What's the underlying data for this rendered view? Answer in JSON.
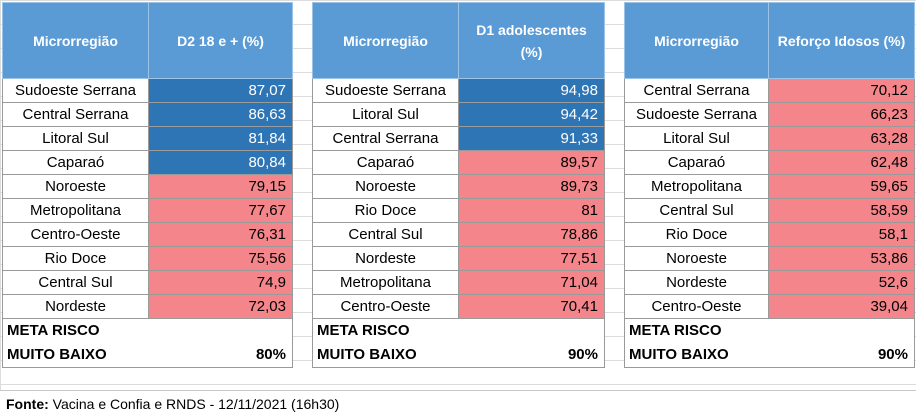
{
  "tables": [
    {
      "header_region": "Microrregião",
      "header_value": "D2 18 e + (%)",
      "rows": [
        {
          "region": "Sudoeste Serrana",
          "value": "87,07",
          "status": "blue"
        },
        {
          "region": "Central Serrana",
          "value": "86,63",
          "status": "blue"
        },
        {
          "region": "Litoral Sul",
          "value": "81,84",
          "status": "blue"
        },
        {
          "region": "Caparaó",
          "value": "80,84",
          "status": "blue"
        },
        {
          "region": "Noroeste",
          "value": "79,15",
          "status": "red"
        },
        {
          "region": "Metropolitana",
          "value": "77,67",
          "status": "red"
        },
        {
          "region": "Centro-Oeste",
          "value": "76,31",
          "status": "red"
        },
        {
          "region": "Rio Doce",
          "value": "75,56",
          "status": "red"
        },
        {
          "region": "Central Sul",
          "value": "74,9",
          "status": "red"
        },
        {
          "region": "Nordeste",
          "value": "72,03",
          "status": "red"
        }
      ],
      "meta_label_1": "META RISCO",
      "meta_label_2": "MUITO BAIXO",
      "meta_value": "80%"
    },
    {
      "header_region": "Microrregião",
      "header_value": "D1 adolescentes (%)",
      "rows": [
        {
          "region": "Sudoeste Serrana",
          "value": "94,98",
          "status": "blue"
        },
        {
          "region": "Litoral Sul",
          "value": "94,42",
          "status": "blue"
        },
        {
          "region": "Central Serrana",
          "value": "91,33",
          "status": "blue"
        },
        {
          "region": "Caparaó",
          "value": "89,57",
          "status": "red"
        },
        {
          "region": "Noroeste",
          "value": "89,73",
          "status": "red"
        },
        {
          "region": "Rio Doce",
          "value": "81",
          "status": "red"
        },
        {
          "region": "Central Sul",
          "value": "78,86",
          "status": "red"
        },
        {
          "region": "Nordeste",
          "value": "77,51",
          "status": "red"
        },
        {
          "region": "Metropolitana",
          "value": "71,04",
          "status": "red"
        },
        {
          "region": "Centro-Oeste",
          "value": "70,41",
          "status": "red"
        }
      ],
      "meta_label_1": "META RISCO",
      "meta_label_2": "MUITO BAIXO",
      "meta_value": "90%"
    },
    {
      "header_region": "Microrregião",
      "header_value": "Reforço Idosos (%)",
      "rows": [
        {
          "region": "Central Serrana",
          "value": "70,12",
          "status": "red"
        },
        {
          "region": "Sudoeste Serrana",
          "value": "66,23",
          "status": "red"
        },
        {
          "region": "Litoral Sul",
          "value": "63,28",
          "status": "red"
        },
        {
          "region": "Caparaó",
          "value": "62,48",
          "status": "red"
        },
        {
          "region": "Metropolitana",
          "value": "59,65",
          "status": "red"
        },
        {
          "region": "Central Sul",
          "value": "58,59",
          "status": "red"
        },
        {
          "region": "Rio Doce",
          "value": "58,1",
          "status": "red"
        },
        {
          "region": "Noroeste",
          "value": "53,86",
          "status": "red"
        },
        {
          "region": "Nordeste",
          "value": "52,6",
          "status": "red"
        },
        {
          "region": "Centro-Oeste",
          "value": "39,04",
          "status": "red"
        }
      ],
      "meta_label_1": "META RISCO",
      "meta_label_2": "MUITO BAIXO",
      "meta_value": "90%"
    }
  ],
  "source": {
    "label": "Fonte:",
    "text": "Vacina e Confia e RNDS - 12/11/2021 (16h30)"
  },
  "colors": {
    "header_bg": "#5b9bd5",
    "above_target": "#2e75b6",
    "below_target": "#f4858a"
  }
}
